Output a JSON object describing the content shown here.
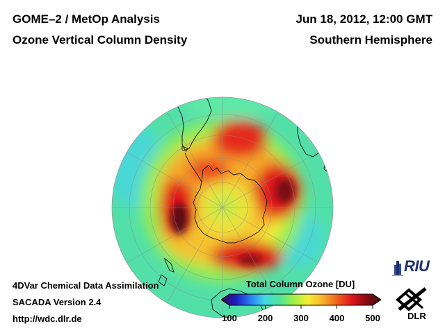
{
  "header": {
    "left_line1": "GOME–2 / MetOp Analysis",
    "left_line2": "Ozone Vertical Column Density",
    "right_line1": "Jun 18, 2012, 12:00 GMT",
    "right_line2": "Southern Hemisphere"
  },
  "footer": {
    "line1": "4DVar Chemical Data Assimilation",
    "line2": "SACADA Version 2.4",
    "line3": "http://wdc.dlr.de"
  },
  "colorbar": {
    "title": "Total Column Ozone [DU]",
    "min": 100,
    "max": 500,
    "ticks": [
      "100",
      "200",
      "300",
      "400",
      "500"
    ],
    "colors": [
      "#3a0a4a",
      "#1c1cbe",
      "#2a7df0",
      "#3fd9e6",
      "#4fe39a",
      "#9ef046",
      "#f6ee33",
      "#f7b12b",
      "#f1601e",
      "#e0141e",
      "#8a0a12",
      "#3e1010"
    ]
  },
  "logos": {
    "riu": "RIU",
    "dlr": "DLR"
  },
  "map": {
    "projection": "orthographic-south-pole",
    "icon": "globe-icon"
  }
}
